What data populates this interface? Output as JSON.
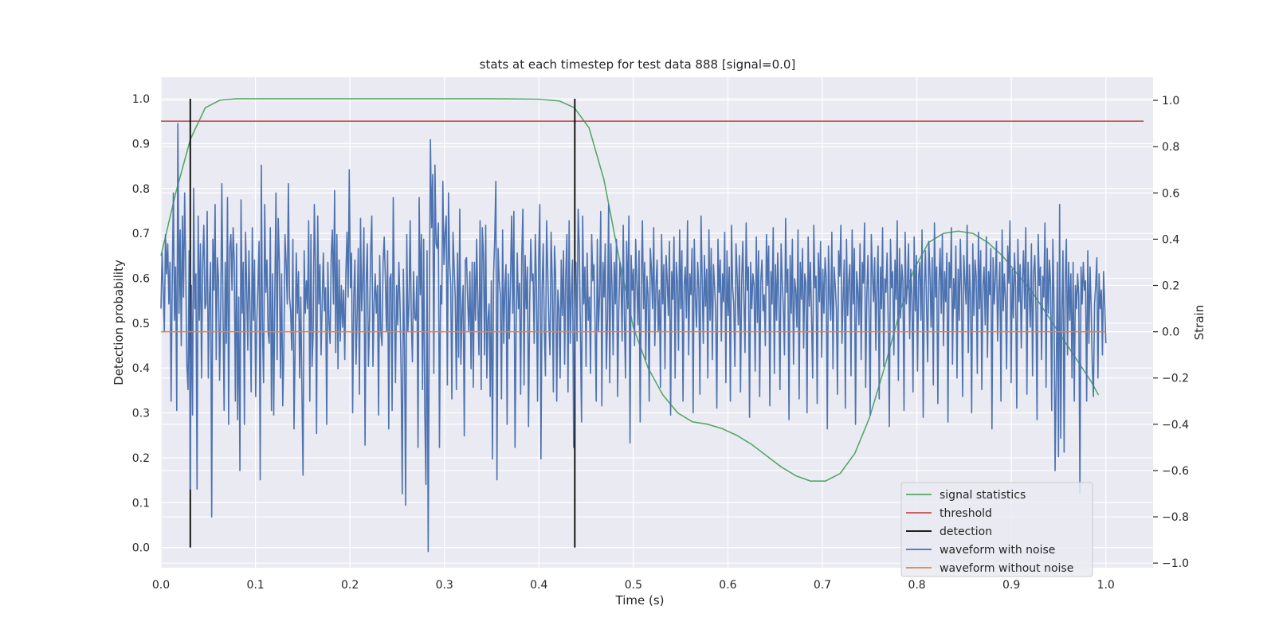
{
  "chart_data": {
    "type": "line",
    "title": "stats at each timestep for test data 888 [signal=0.0]",
    "xlabel": "Time (s)",
    "ylabel": "Detection probability",
    "ylabel_right": "Strain",
    "xlim": [
      0.0,
      1.05
    ],
    "ylim": [
      -0.045,
      1.048
    ],
    "ylim_right": [
      -1.02,
      1.1
    ],
    "xticks": [
      0.0,
      0.1,
      0.2,
      0.3,
      0.4,
      0.5,
      0.6,
      0.7,
      0.8,
      0.9,
      1.0
    ],
    "xtick_labels": [
      "0.0",
      "0.1",
      "0.2",
      "0.3",
      "0.4",
      "0.5",
      "0.6",
      "0.7",
      "0.8",
      "0.9",
      "1.0"
    ],
    "yticks": [
      0.0,
      0.1,
      0.2,
      0.3,
      0.4,
      0.5,
      0.6,
      0.7,
      0.8,
      0.9,
      1.0
    ],
    "ytick_labels": [
      "0.0",
      "0.1",
      "0.2",
      "0.3",
      "0.4",
      "0.5",
      "0.6",
      "0.7",
      "0.8",
      "0.9",
      "1.0"
    ],
    "yticks_right": [
      -1.0,
      -0.8,
      -0.6,
      -0.4,
      -0.2,
      0.0,
      0.2,
      0.4,
      0.6,
      0.8,
      1.0
    ],
    "ytick_labels_right": [
      "−1.0",
      "−0.8",
      "−0.6",
      "−0.4",
      "−0.2",
      "0.0",
      "0.2",
      "0.4",
      "0.6",
      "0.8",
      "1.0"
    ],
    "grid": true,
    "legend_position": "lower-right",
    "series": [
      {
        "name": "signal statistics",
        "axis": "left",
        "color": "#55a868",
        "x": [
          0.0,
          0.0156,
          0.0312,
          0.0469,
          0.0625,
          0.08,
          0.1,
          0.2,
          0.3,
          0.35,
          0.4,
          0.4219,
          0.4375,
          0.4531,
          0.4688,
          0.4844,
          0.5,
          0.5156,
          0.5312,
          0.5469,
          0.5625,
          0.5781,
          0.5938,
          0.6094,
          0.625,
          0.6406,
          0.6562,
          0.6719,
          0.6875,
          0.7031,
          0.7188,
          0.7344,
          0.75,
          0.7656,
          0.7812,
          0.7969,
          0.8125,
          0.8281,
          0.8438,
          0.8594,
          0.875,
          0.8906,
          0.9062,
          0.9219,
          0.9375,
          0.9531,
          0.9688,
          0.9844,
          0.9922
        ],
        "y": [
          0.65,
          0.79,
          0.91,
          0.98,
          0.997,
          1.0,
          1.0,
          1.0,
          1.0,
          1.0,
          0.999,
          0.995,
          0.98,
          0.935,
          0.82,
          0.65,
          0.49,
          0.4,
          0.34,
          0.3,
          0.28,
          0.275,
          0.265,
          0.25,
          0.23,
          0.205,
          0.18,
          0.16,
          0.148,
          0.148,
          0.165,
          0.21,
          0.29,
          0.4,
          0.52,
          0.62,
          0.68,
          0.7,
          0.705,
          0.7,
          0.68,
          0.65,
          0.61,
          0.57,
          0.52,
          0.47,
          0.42,
          0.37,
          0.34
        ]
      },
      {
        "name": "threshold",
        "axis": "left",
        "color": "#c44e52",
        "x": [
          0.0,
          1.04
        ],
        "y": [
          0.95,
          0.95
        ]
      },
      {
        "name": "detection",
        "axis": "left",
        "color": "#000000",
        "segments": [
          {
            "x": 0.031,
            "y0": 0.0,
            "y1": 1.0
          },
          {
            "x": 0.438,
            "y0": 0.0,
            "y1": 1.0
          }
        ]
      },
      {
        "name": "waveform with noise",
        "axis": "right",
        "color": "#4c72b0",
        "x_start": 0.0,
        "x_end": 1.0,
        "y": [
          0.1,
          0.34,
          0.18,
          0.0,
          0.42,
          0.25,
          0.38,
          0.12,
          0.3,
          -0.3,
          0.22,
          0.6,
          0.05,
          0.28,
          -0.34,
          0.9,
          0.08,
          0.44,
          -0.06,
          0.5,
          0.15,
          0.6,
          0.26,
          -0.15,
          -0.25,
          0.35,
          -0.68,
          0.2,
          -0.36,
          0.62,
          0.1,
          0.25,
          -0.68,
          0.5,
          0.05,
          0.38,
          -0.2,
          0.3,
          0.46,
          0.1,
          0.12,
          0.52,
          -0.2,
          0.15,
          0.3,
          -0.8,
          0.4,
          0.18,
          0.55,
          -0.12,
          0.32,
          0.23,
          -0.21,
          0.1,
          0.64,
          0.1,
          -0.34,
          0.3,
          -0.05,
          0.58,
          -0.4,
          0.36,
          0.42,
          0.18,
          0.45,
          0.3,
          -0.3,
          0.38,
          -0.38,
          0.15,
          -0.6,
          0.57,
          0.08,
          0.3,
          -0.4,
          0.43,
          0.2,
          -0.08,
          0.35,
          0.1,
          -0.26,
          0.45,
          0.05,
          0.31,
          -0.28,
          0.05,
          0.2,
          0.39,
          -0.64,
          0.72,
          0.02,
          -0.22,
          0.55,
          0.17,
          0.31,
          0.0,
          -0.05,
          0.45,
          -0.34,
          0.25,
          -0.36,
          0.18,
          0.6,
          -0.12,
          0.49,
          0.3,
          -0.2,
          0.25,
          -0.32,
          -0.08,
          0.42,
          0.3,
          0.12,
          0.64,
          0.15,
          0.09,
          -0.08,
          0.4,
          -0.42,
          -0.06,
          0.34,
          0.08,
          0.26,
          -0.2,
          0.15,
          -0.25,
          -0.62,
          0.35,
          0.08,
          0.22,
          0.1,
          0.48,
          -0.3,
          0.42,
          -0.15,
          0.0,
          0.55,
          0.29,
          -0.44,
          0.5,
          0.12,
          0.29,
          -0.1,
          0.13,
          0.34,
          0.09,
          0.19,
          -0.4,
          0.3,
          0.05,
          -0.05,
          0.33,
          0.44,
          0.12,
          0.61,
          -0.09,
          0.42,
          -0.16,
          0.31,
          -0.04,
          0.2,
          0.02,
          0.18,
          -0.12,
          0.25,
          0.43,
          0.15,
          0.7,
          0.19,
          0.34,
          -0.35,
          0.15,
          0.31,
          -0.14,
          0.08,
          0.36,
          -0.27,
          0.49,
          0.09,
          0.22,
          0.45,
          -0.49,
          0.21,
          0.38,
          -0.15,
          0.05,
          0.35,
          0.5,
          -0.15,
          0.12,
          0.25,
          0.08,
          0.2,
          -0.36,
          0.33,
          0.0,
          -0.06,
          0.3,
          0.41,
          0.23,
          0.0,
          0.35,
          -0.42,
          0.23,
          0.25,
          -0.34,
          0.58,
          0.15,
          -0.22,
          0.2,
          0.03,
          0.3,
          0.12,
          -0.18,
          -0.7,
          0.27,
          -0.06,
          -0.75,
          0.42,
          0.0,
          0.12,
          0.48,
          0.06,
          -0.13,
          0.26,
          0.06,
          0.05,
          0.24,
          -0.5,
          0.58,
          0.16,
          0.42,
          -0.25,
          0.4,
          -0.35,
          -0.66,
          0.35,
          -0.95,
          0.1,
          0.83,
          0.45,
          0.68,
          -0.18,
          0.72,
          0.38,
          0.36,
          0.47,
          -0.5,
          0.2,
          0.12,
          0.65,
          0.29,
          0.43,
          0.5,
          -0.23,
          0.6,
          0.3,
          0.2,
          -0.29,
          0.43,
          0.28,
          0.15,
          -0.25,
          0.34,
          -0.11,
          0.53,
          -0.14,
          0.08,
          0.2,
          -0.45,
          0.31,
          0.32,
          0.14,
          0.0,
          0.26,
          -0.16,
          0.3,
          -0.24,
          0.3,
          0.05,
          0.4,
          0.12,
          -0.1,
          0.48,
          -0.25,
          0.45,
          0.33,
          -0.1,
          0.46,
          -0.2,
          0.05,
          0.12,
          -0.28,
          0.22,
          -0.55,
          0.25,
          0.4,
          0.65,
          -0.64,
          0.36,
          0.22,
          0.16,
          -0.29,
          0.44,
          -0.05,
          0.19,
          0.29,
          -0.4,
          0.25,
          -0.03,
          0.23,
          0.5,
          0.08,
          0.52,
          -0.5,
          0.02,
          0.34,
          0.1,
          0.21,
          -0.27,
          0.33,
          0.53,
          -0.23,
          0.33,
          0.1,
          0.28,
          -0.41,
          0.12,
          0.4,
          0.22,
          0.25,
          -0.05,
          0.42,
          0.2,
          -0.3,
          0.32,
          0.55,
          -0.55,
          0.18,
          0.38,
          0.01,
          -0.19,
          0.48,
          0.27,
          0.04,
          -0.1,
          0.43,
          0.22,
          -0.26,
          0.37,
          0.25,
          -0.3,
          0.18,
          0.1,
          -0.2,
          0.31,
          0.07,
          0.35,
          -0.14,
          0.24,
          0.42,
          -0.26,
          0.48,
          -0.05,
          0.17,
          0.31,
          -0.5,
          0.1,
          0.3,
          -0.04,
          0.53,
          0.37,
          0.0,
          -0.39,
          0.5,
          0.12,
          0.28,
          -0.15,
          0.34,
          0.05,
          0.15,
          -0.18,
          0.42,
          0.22,
          0.29,
          0.04,
          -0.3,
          0.4,
          0.0,
          0.16,
          0.52,
          -0.32,
          0.3,
          0.15,
          0.38,
          -0.16,
          0.06,
          0.55,
          -0.22,
          0.38,
          0.2,
          -0.1,
          0.3,
          0.12,
          0.4,
          -0.28,
          0.09,
          0.3,
          0.24,
          -0.04,
          0.46,
          0.07,
          -0.2,
          0.39,
          0.1,
          0.5,
          -0.48,
          0.33,
          0.18,
          0.27,
          -0.06,
          0.4,
          0.22,
          0.03,
          0.35,
          -0.39,
          0.21,
          0.48,
          0.1,
          0.3,
          -0.12,
          0.24,
          0.16,
          -0.3,
          0.36,
          0.27,
          0.1,
          0.45,
          -0.06,
          0.2,
          0.31,
          0.0,
          0.18,
          -0.24,
          0.42,
          0.12,
          0.29,
          -0.16,
          0.33,
          0.22,
          0.07,
          0.39,
          -0.36,
          0.26,
          0.14,
          0.41,
          -0.2,
          0.3,
          0.22,
          -0.08,
          0.44,
          0.1,
          0.35,
          -0.3,
          0.2,
          0.28,
          0.06,
          0.48,
          -0.1,
          0.25,
          0.16,
          0.36,
          -0.35,
          0.4,
          0.15,
          0.02,
          0.3,
          0.19,
          -0.27,
          0.5,
          0.22,
          -0.05,
          0.33,
          0.11,
          0.27,
          -0.2,
          0.44,
          0.05,
          0.36,
          -0.12,
          0.29,
          0.2,
          0.08,
          -0.33,
          0.4,
          0.17,
          0.31,
          -0.04,
          0.25,
          0.13,
          0.43,
          -0.22,
          0.35,
          0.07,
          0.28,
          -0.3,
          0.46,
          0.19,
          0.12,
          -0.15,
          0.38,
          0.24,
          0.03,
          0.33,
          -0.26,
          0.21,
          0.39,
          0.14,
          -0.09,
          0.47,
          0.18,
          0.28,
          -0.37,
          0.3,
          0.1,
          0.25,
          0.2,
          -0.17,
          0.41,
          0.04,
          0.35,
          -0.28,
          0.22,
          0.31,
          0.09,
          0.16,
          -0.06,
          0.42,
          0.2,
          0.37,
          -0.32,
          0.26,
          0.12,
          0.45,
          -0.18,
          0.29,
          0.05,
          0.34,
          0.15,
          -0.25,
          0.38,
          0.22,
          0.1,
          -0.1,
          0.49,
          0.17,
          0.27,
          -0.38,
          0.33,
          0.08,
          0.4,
          -0.14,
          0.23,
          0.18,
          0.02,
          0.44,
          -0.29,
          0.3,
          0.14,
          0.36,
          -0.07,
          0.25,
          0.21,
          -0.35,
          0.41,
          0.11,
          0.3,
          0.06,
          -0.2,
          0.46,
          0.19,
          0.24,
          -0.31,
          0.34,
          0.13,
          0.39,
          -0.11,
          0.27,
          0.08,
          0.32,
          0.23,
          -0.42,
          0.37,
          0.16,
          0.05,
          0.43,
          -0.16,
          0.28,
          0.2,
          0.1,
          -0.27,
          0.35,
          0.24,
          0.46,
          -0.05,
          0.14,
          0.31,
          -0.33,
          0.4,
          0.07,
          0.22,
          0.29,
          -0.19,
          0.44,
          0.12,
          0.36,
          -0.4,
          0.26,
          0.18,
          0.03,
          0.38,
          -0.12,
          0.3,
          0.21,
          0.47,
          -0.24,
          0.15,
          0.33,
          0.09,
          -0.36,
          0.42,
          0.25,
          0.13,
          0.32,
          -0.08,
          0.2,
          0.37,
          -0.29,
          0.28,
          0.1,
          0.45,
          -0.15,
          0.23,
          0.17,
          0.34,
          0.04,
          -0.41,
          0.4,
          0.19,
          0.26,
          -0.1,
          0.31,
          0.14,
          0.48,
          -0.21,
          0.36,
          0.06,
          0.29,
          0.22,
          -0.34,
          0.43,
          0.12,
          0.2,
          0.38,
          -0.03,
          0.27,
          0.16,
          -0.26,
          0.41,
          0.09,
          0.33,
          -0.17,
          0.24,
          0.3,
          0.05,
          0.44,
          -0.37,
          0.18,
          0.35,
          0.11,
          -0.13,
          0.39,
          0.25,
          0.02,
          0.32,
          -0.23,
          0.47,
          0.15,
          0.28,
          -0.31,
          0.21,
          0.36,
          0.08,
          0.42,
          -0.06,
          0.26,
          0.13,
          0.34,
          -0.39,
          0.3,
          0.19,
          0.45,
          -0.14,
          0.23,
          0.1,
          0.37,
          -0.2,
          0.27,
          0.05,
          0.4,
          0.17,
          -0.28,
          0.33,
          0.22,
          0.12,
          0.46,
          -0.09,
          0.29,
          0.15,
          -0.35,
          0.38,
          0.07,
          0.31,
          0.24,
          -0.18,
          0.43,
          0.1,
          0.35,
          -0.25,
          0.2,
          0.28,
          0.03,
          0.41,
          -0.11,
          0.26,
          0.16,
          0.36,
          -0.42,
          0.32,
          0.12,
          0.23,
          0.39,
          -0.04,
          0.18,
          0.3,
          -0.3,
          0.44,
          0.09,
          0.25,
          0.14,
          -0.16,
          0.37,
          0.21,
          0.48,
          -0.22,
          0.27,
          0.06,
          0.34,
          0.19,
          -0.33,
          0.4,
          0.13,
          0.29,
          -0.07,
          0.22,
          0.35,
          0.1,
          0.45,
          -0.27,
          0.3,
          0.17,
          0.02,
          0.38,
          -0.19,
          0.26,
          0.33,
          0.11,
          -0.38,
          0.42,
          0.2,
          0.28,
          -0.12,
          0.24,
          0.15,
          0.47,
          -0.24,
          0.36,
          0.08,
          0.31,
          0.2,
          -0.34,
          0.4,
          0.14,
          -0.6,
          -0.2,
          0.3,
          -0.54,
          0.55,
          -0.46,
          0.1,
          0.35,
          -0.52,
          0.22,
          0.4,
          -0.1,
          0.3,
          0.05,
          0.25,
          -0.2,
          0.3,
          -0.3,
          0.2,
          0.1,
          0.25,
          0.15,
          -0.7,
          0.28,
          0.12,
          0.3,
          0.18,
          0.22,
          -0.3,
          0.35,
          -0.05,
          0.28,
          0.1,
          -0.15,
          -0.28,
          0.12,
          0.2,
          0.32,
          -0.2,
          0.25,
          0.1,
          0.18,
          -0.1,
          0.26,
          0.12,
          -0.05
        ]
      },
      {
        "name": "waveform without noise",
        "axis": "right",
        "color": "#dd8452",
        "x": [
          0.0,
          1.0
        ],
        "y": [
          0.0,
          0.0
        ]
      }
    ],
    "legend": [
      {
        "label": "signal statistics",
        "color": "#55a868"
      },
      {
        "label": "threshold",
        "color": "#c44e52"
      },
      {
        "label": "detection",
        "color": "#000000"
      },
      {
        "label": "waveform with noise",
        "color": "#4c72b0"
      },
      {
        "label": "waveform without noise",
        "color": "#dd8452"
      }
    ],
    "style": {
      "background": "#eaeaf2",
      "grid_color": "#ffffff"
    }
  }
}
